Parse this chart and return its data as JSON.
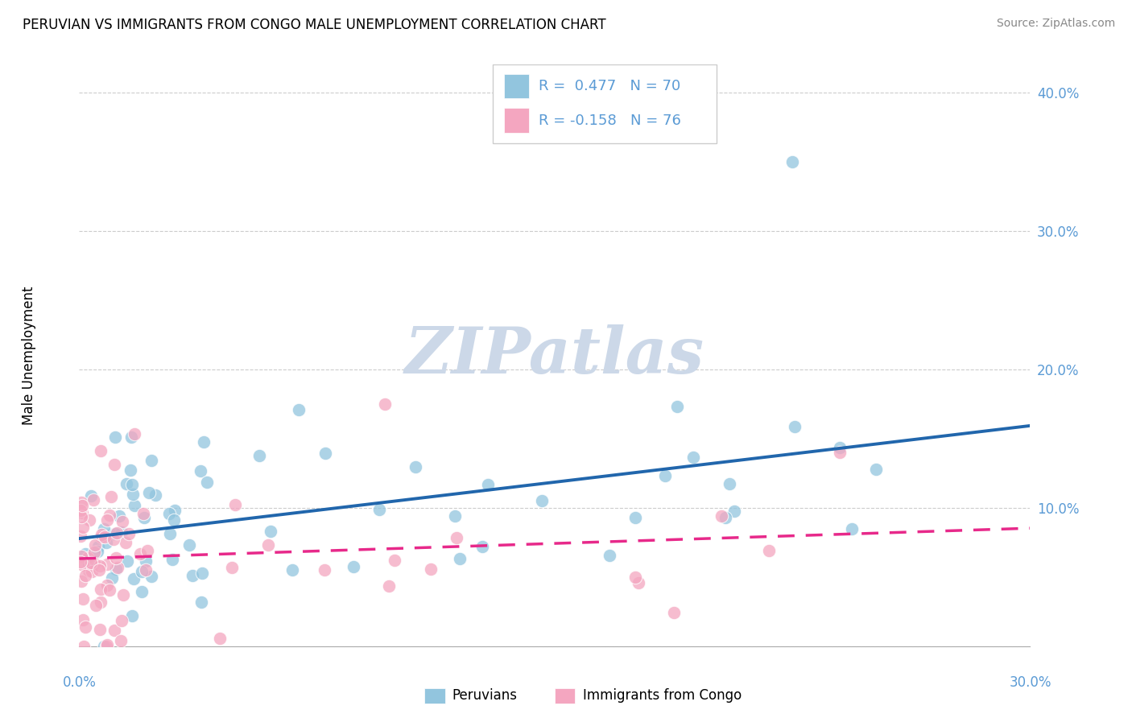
{
  "title": "PERUVIAN VS IMMIGRANTS FROM CONGO MALE UNEMPLOYMENT CORRELATION CHART",
  "source": "Source: ZipAtlas.com",
  "ylabel": "Male Unemployment",
  "xlim": [
    0.0,
    0.3
  ],
  "ylim": [
    0.0,
    0.42
  ],
  "yticks": [
    0.0,
    0.1,
    0.2,
    0.3,
    0.4
  ],
  "ytick_labels": [
    "",
    "10.0%",
    "20.0%",
    "30.0%",
    "40.0%"
  ],
  "peruvian_R": 0.477,
  "peruvian_N": 70,
  "congo_R": -0.158,
  "congo_N": 76,
  "blue_scatter_color": "#92c5de",
  "pink_scatter_color": "#f4a6c0",
  "blue_line_color": "#2166ac",
  "pink_line_color": "#e7298a",
  "legend_label_1": "Peruvians",
  "legend_label_2": "Immigrants from Congo",
  "watermark_text": "ZIPatlas",
  "watermark_color": "#ccd8e8",
  "background_color": "#ffffff",
  "grid_color": "#cccccc",
  "axis_label_color": "#5b9bd5",
  "title_fontsize": 12,
  "source_fontsize": 10,
  "tick_fontsize": 12,
  "legend_fontsize": 13
}
